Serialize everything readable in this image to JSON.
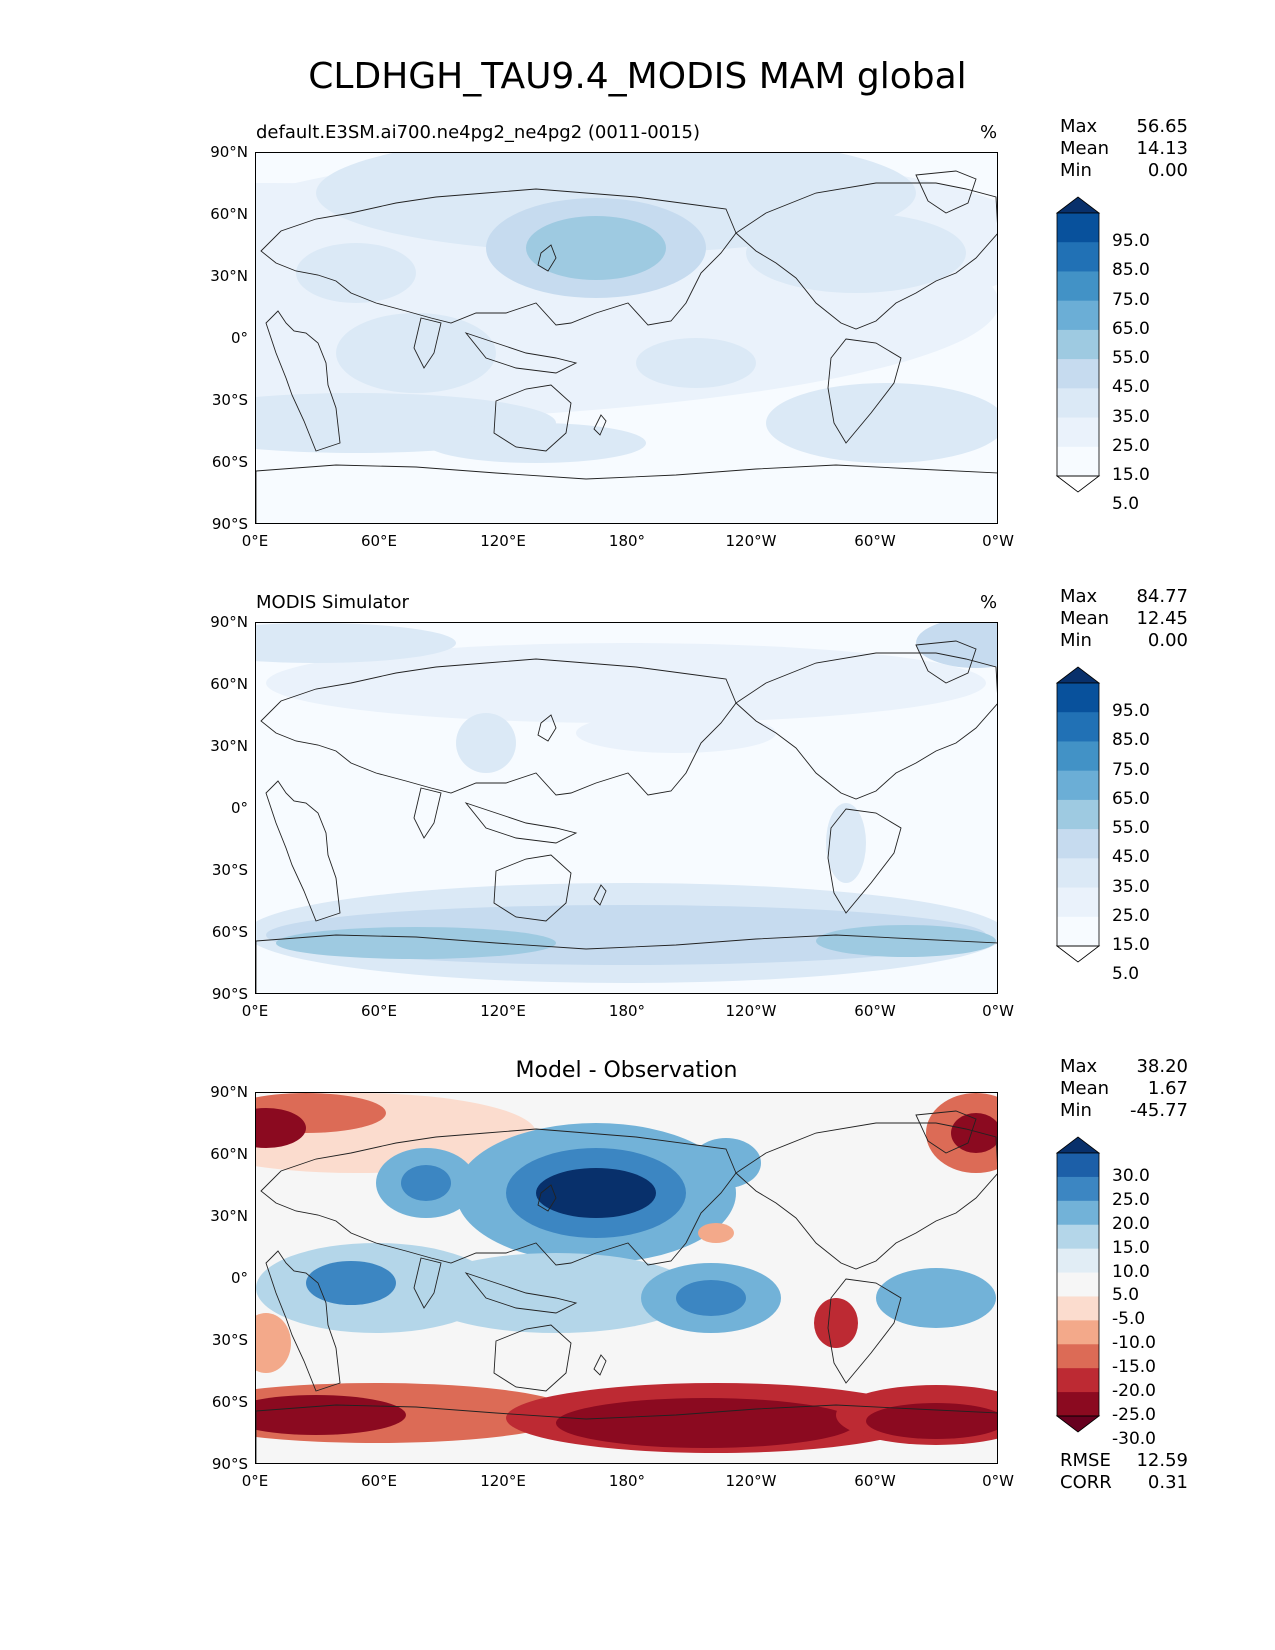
{
  "title": "CLDHGH_TAU9.4_MODIS MAM global",
  "map_axes": {
    "lat_ticks": [
      "90°N",
      "60°N",
      "30°N",
      "0°",
      "30°S",
      "60°S",
      "90°S"
    ],
    "lon_ticks": [
      "0°E",
      "60°E",
      "120°E",
      "180°",
      "120°W",
      "60°W",
      "0°W"
    ]
  },
  "panels": [
    {
      "id": "test",
      "title_left": "default.E3SM.ai700.ne4pg2_ne4pg2 (0011-0015)",
      "title_right": "%",
      "stats": [
        {
          "label": "Max",
          "value": "56.65"
        },
        {
          "label": "Mean",
          "value": "14.13"
        },
        {
          "label": "Min",
          "value": "0.00"
        }
      ],
      "colorbar": {
        "labels": [
          "95.0",
          "85.0",
          "75.0",
          "65.0",
          "55.0",
          "45.0",
          "35.0",
          "25.0",
          "15.0",
          "5.0"
        ],
        "colors": [
          "#08306b",
          "#08519c",
          "#2171b5",
          "#4292c6",
          "#6baed6",
          "#9ecae1",
          "#c6dbef",
          "#dbe9f6",
          "#eaf2fb",
          "#f7fbff",
          "#ffffff"
        ]
      }
    },
    {
      "id": "reference",
      "title_left": "MODIS Simulator",
      "title_right": "%",
      "stats": [
        {
          "label": "Max",
          "value": "84.77"
        },
        {
          "label": "Mean",
          "value": "12.45"
        },
        {
          "label": "Min",
          "value": "0.00"
        }
      ],
      "colorbar": {
        "labels": [
          "95.0",
          "85.0",
          "75.0",
          "65.0",
          "55.0",
          "45.0",
          "35.0",
          "25.0",
          "15.0",
          "5.0"
        ],
        "colors": [
          "#08306b",
          "#08519c",
          "#2171b5",
          "#4292c6",
          "#6baed6",
          "#9ecae1",
          "#c6dbef",
          "#dbe9f6",
          "#eaf2fb",
          "#f7fbff",
          "#ffffff"
        ]
      }
    },
    {
      "id": "diff",
      "title_center": "Model - Observation",
      "stats": [
        {
          "label": "Max",
          "value": "38.20"
        },
        {
          "label": "Mean",
          "value": "1.67"
        },
        {
          "label": "Min",
          "value": "-45.77"
        }
      ],
      "colorbar": {
        "labels": [
          "30.0",
          "25.0",
          "20.0",
          "15.0",
          "10.0",
          "5.0",
          "-5.0",
          "-10.0",
          "-15.0",
          "-20.0",
          "-25.0",
          "-30.0"
        ],
        "colors": [
          "#08306b",
          "#1c5fa8",
          "#3c86c2",
          "#72b2d8",
          "#b4d6e9",
          "#e1edf5",
          "#f6f6f6",
          "#fbdcce",
          "#f3a98a",
          "#dc6b56",
          "#bd2a33",
          "#8b0a20",
          "#67001f"
        ]
      },
      "extra_stats": [
        {
          "label": "RMSE",
          "value": "12.59"
        },
        {
          "label": "CORR",
          "value": "0.31"
        }
      ]
    }
  ]
}
